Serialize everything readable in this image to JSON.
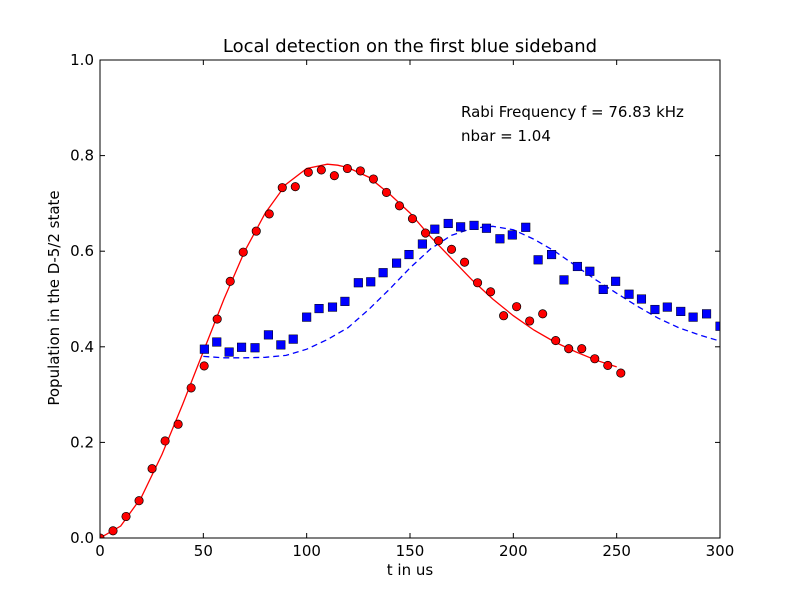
{
  "chart_data": {
    "type": "scatter",
    "title": "Local detection on the first blue sideband",
    "xlabel": "t in us",
    "ylabel": "Population in the D-5/2 state",
    "xlim": [
      0,
      300
    ],
    "ylim": [
      0.0,
      1.0
    ],
    "x_ticks": [
      0,
      50,
      100,
      150,
      200,
      250,
      300
    ],
    "y_ticks": [
      0.0,
      0.2,
      0.4,
      0.6,
      0.8,
      1.0
    ],
    "x_tick_labels": [
      "0",
      "50",
      "100",
      "150",
      "200",
      "250",
      "300"
    ],
    "y_tick_labels": [
      "0.0",
      "0.2",
      "0.4",
      "0.6",
      "0.8",
      "1.0"
    ],
    "annotations": [
      "Rabi Frequency f = 76.83 kHz",
      "nbar = 1.04"
    ],
    "grid": false,
    "colors": {
      "red_series": "#ff0000",
      "blue_series": "#0000ff",
      "marker_edge": "#000000"
    },
    "series": [
      {
        "marker": "circle",
        "color": "#ff0000",
        "x": [
          0,
          6.3,
          12.6,
          18.9,
          25.2,
          31.5,
          37.8,
          44.1,
          50.4,
          56.7,
          63.0,
          69.3,
          75.6,
          81.9,
          88.2,
          94.5,
          100.8,
          107.1,
          113.4,
          119.7,
          126.0,
          132.3,
          138.6,
          144.9,
          151.2,
          157.5,
          163.8,
          170.1,
          176.4,
          182.7,
          189.0,
          195.3,
          201.6,
          207.9,
          214.2,
          220.5,
          226.8,
          233.1,
          239.4,
          245.7,
          252.0
        ],
        "y": [
          0.0,
          0.015,
          0.045,
          0.078,
          0.145,
          0.203,
          0.238,
          0.314,
          0.36,
          0.458,
          0.537,
          0.598,
          0.642,
          0.678,
          0.733,
          0.735,
          0.765,
          0.77,
          0.758,
          0.773,
          0.768,
          0.751,
          0.723,
          0.695,
          0.668,
          0.638,
          0.622,
          0.604,
          0.577,
          0.534,
          0.515,
          0.465,
          0.484,
          0.454,
          0.469,
          0.413,
          0.396,
          0.396,
          0.375,
          0.361,
          0.345
        ]
      },
      {
        "marker": "square",
        "color": "#0000ff",
        "x": [
          50.5,
          56.5,
          62.5,
          68.5,
          75.0,
          81.5,
          87.5,
          93.5,
          100.0,
          106.0,
          112.5,
          118.5,
          125.0,
          131.0,
          137.0,
          143.5,
          149.5,
          156.0,
          162.0,
          168.5,
          174.5,
          181.0,
          187.0,
          193.5,
          199.5,
          206.0,
          212.0,
          218.5,
          224.5,
          231.0,
          237.0,
          243.5,
          249.5,
          256.0,
          262.0,
          268.5,
          274.5,
          281.0,
          287.0,
          293.5,
          300.0
        ],
        "y": [
          0.395,
          0.41,
          0.389,
          0.399,
          0.398,
          0.425,
          0.404,
          0.416,
          0.462,
          0.48,
          0.483,
          0.495,
          0.534,
          0.536,
          0.555,
          0.575,
          0.593,
          0.615,
          0.646,
          0.658,
          0.651,
          0.654,
          0.648,
          0.626,
          0.634,
          0.65,
          0.582,
          0.593,
          0.54,
          0.568,
          0.558,
          0.52,
          0.537,
          0.51,
          0.5,
          0.478,
          0.483,
          0.474,
          0.462,
          0.469,
          0.443
        ]
      },
      {
        "line": "solid",
        "color": "#ff0000",
        "x": [
          0,
          10,
          20,
          30,
          40,
          50,
          60,
          70,
          80,
          90,
          100,
          110,
          115,
          120,
          130,
          140,
          150,
          160,
          170,
          180,
          190,
          200,
          210,
          220,
          230,
          240,
          250
        ],
        "y": [
          0.0,
          0.025,
          0.085,
          0.175,
          0.28,
          0.39,
          0.5,
          0.6,
          0.68,
          0.74,
          0.773,
          0.782,
          0.78,
          0.775,
          0.755,
          0.72,
          0.68,
          0.63,
          0.585,
          0.54,
          0.5,
          0.465,
          0.435,
          0.41,
          0.39,
          0.372,
          0.358
        ]
      },
      {
        "line": "dashed",
        "color": "#0000ff",
        "x": [
          50,
          60,
          70,
          80,
          90,
          100,
          110,
          120,
          130,
          140,
          150,
          160,
          170,
          180,
          190,
          200,
          210,
          220,
          230,
          240,
          250,
          260,
          270,
          280,
          290,
          300
        ],
        "y": [
          0.38,
          0.377,
          0.377,
          0.378,
          0.382,
          0.395,
          0.415,
          0.44,
          0.478,
          0.52,
          0.565,
          0.605,
          0.633,
          0.648,
          0.652,
          0.645,
          0.625,
          0.6,
          0.57,
          0.54,
          0.512,
          0.485,
          0.46,
          0.44,
          0.425,
          0.412
        ]
      }
    ]
  }
}
